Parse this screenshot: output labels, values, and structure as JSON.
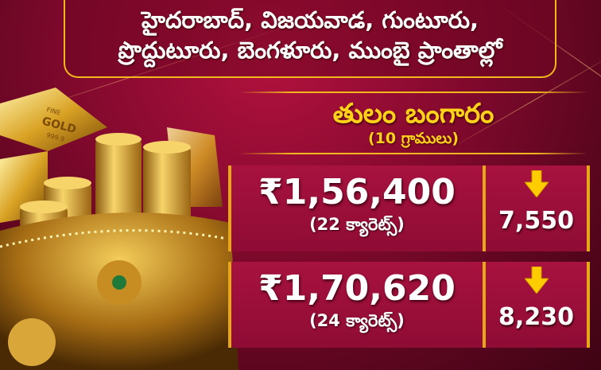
{
  "header": {
    "line1": "హైదరాబాద్, విజయవాడ, గుంటూరు,",
    "line2": "ప్రొద్దుటూరు, బెంగళూరు, ముంబై ప్రాంతాల్లో"
  },
  "title": "తులం బంగారం",
  "subtitle": "(10 గ్రాములు)",
  "gold_bar_text": {
    "line1": "FINE",
    "line2": "GOLD",
    "line3": "999.9"
  },
  "rows": [
    {
      "price": "₹1,56,400",
      "karat": "(22 క్యారెట్స్)",
      "change": "7,550",
      "direction": "down"
    },
    {
      "price": "₹1,70,620",
      "karat": "(24 క్యారెట్స్)",
      "change": "8,230",
      "direction": "down"
    }
  ],
  "colors": {
    "accent": "#ffd21a",
    "border": "#f2b81c",
    "background": "#8a0a30",
    "box": "#a8123f"
  }
}
